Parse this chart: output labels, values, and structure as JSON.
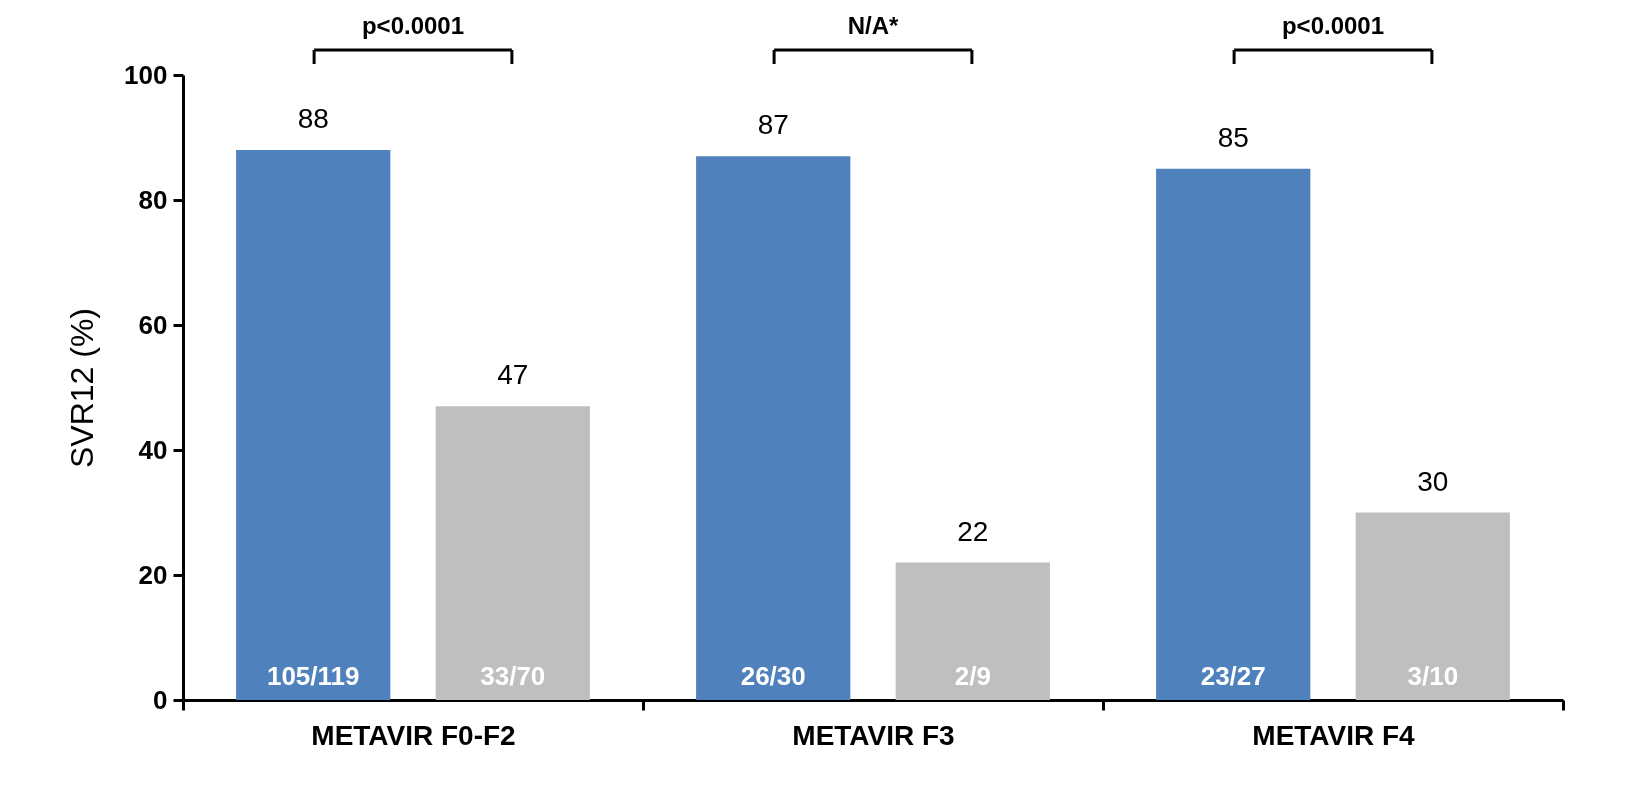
{
  "chart_data": {
    "type": "bar",
    "ylabel": "SVR12 (%)",
    "categories": [
      "METAVIR F0-F2",
      "METAVIR F3",
      "METAVIR F4"
    ],
    "series": [
      {
        "color": "#4f81bd",
        "values": [
          88,
          87,
          85
        ]
      },
      {
        "color": "#bfbfbf",
        "values": [
          47,
          22,
          30
        ]
      }
    ],
    "ylim": [
      0,
      100
    ],
    "yticks": [
      0,
      20,
      40,
      60,
      80,
      100
    ],
    "data_labels": true,
    "annotations": [
      "p<0.0001",
      "N/A*",
      "p<0.0001",
      "105/119",
      "26/30",
      "23/27",
      "33/70",
      "2/9",
      "3/10"
    ]
  }
}
